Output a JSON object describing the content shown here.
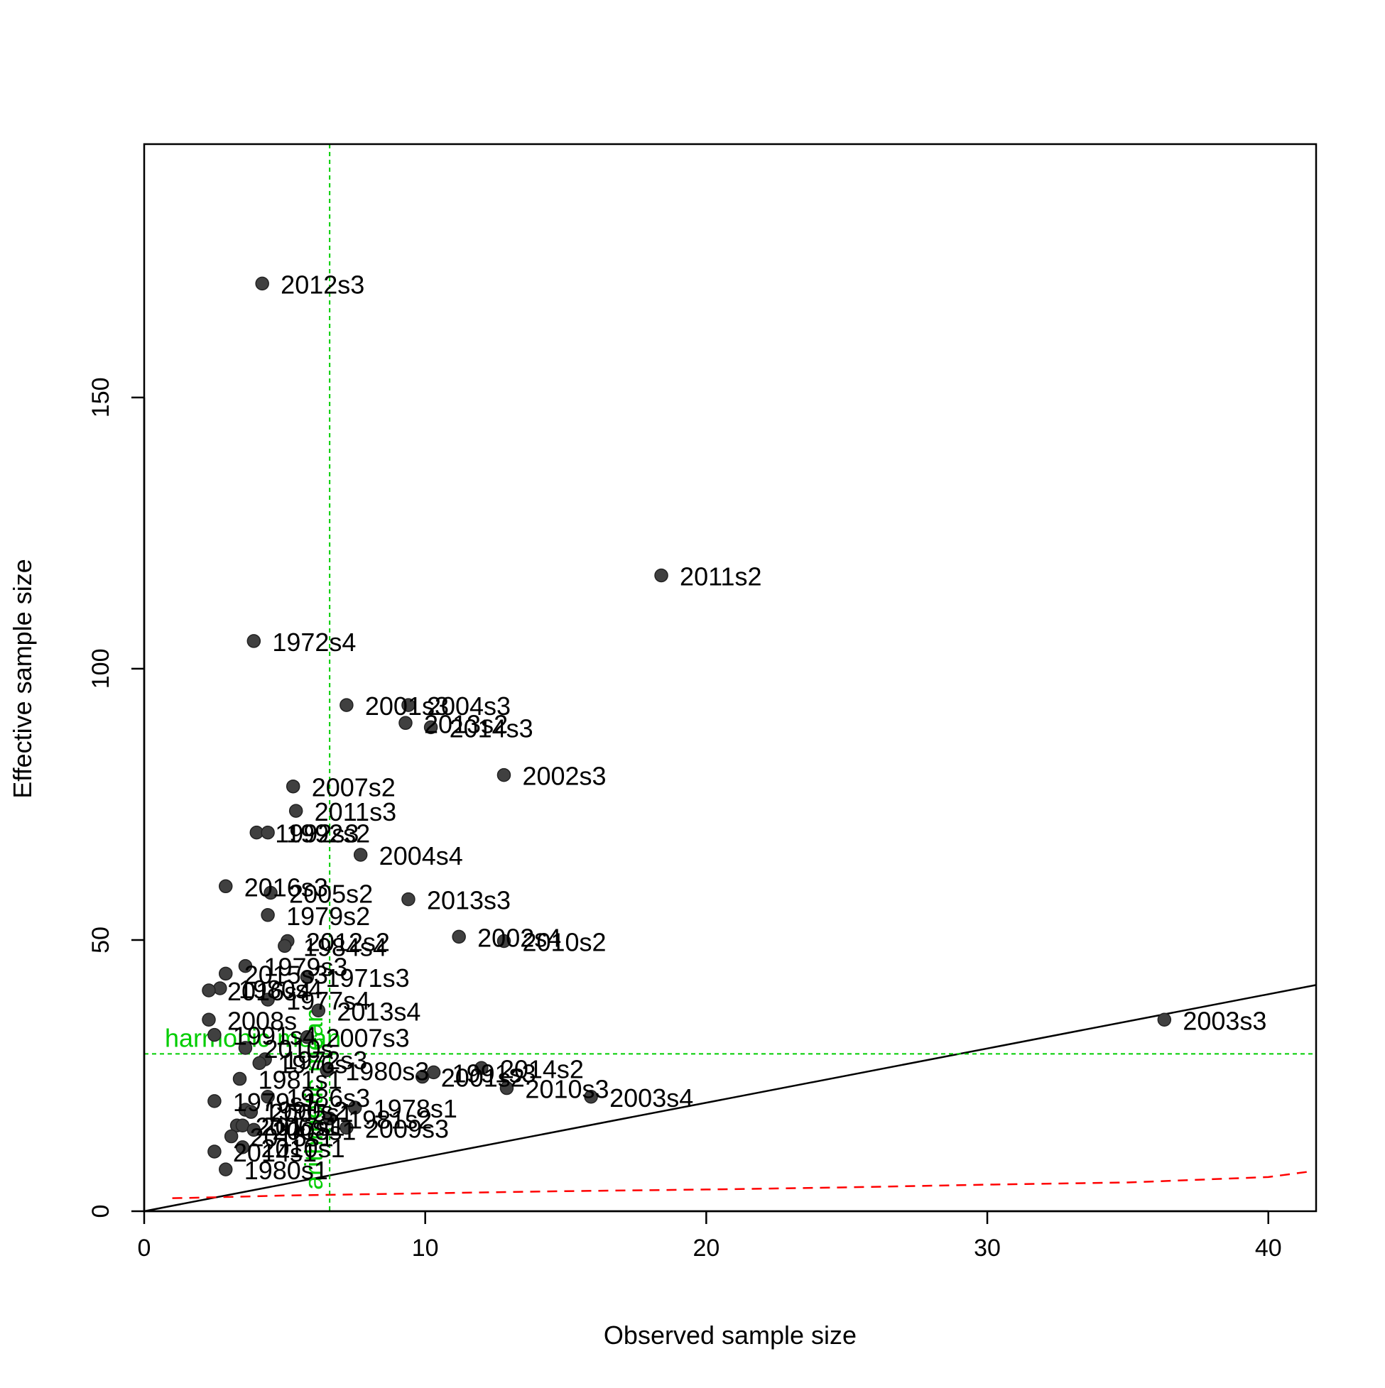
{
  "chart_data": {
    "type": "scatter",
    "xlabel": "Observed sample size",
    "ylabel": "Effective sample size",
    "xlim": [
      0,
      41.7
    ],
    "ylim": [
      0,
      196.7
    ],
    "x_ticks": [
      0,
      10,
      20,
      30,
      40
    ],
    "y_ticks": [
      0,
      50,
      100,
      150
    ],
    "grid": false,
    "colors": {
      "points": "#404040",
      "one_to_one_line": "#000000",
      "reference_lines": "#00cd00",
      "lower_curve": "#ff0000"
    },
    "points": [
      {
        "label": "2012s3",
        "x": 4.2,
        "y": 171.0
      },
      {
        "label": "2011s2",
        "x": 18.4,
        "y": 117.2
      },
      {
        "label": "1972s4",
        "x": 3.9,
        "y": 105.1
      },
      {
        "label": "2001s3",
        "x": 7.2,
        "y": 93.3
      },
      {
        "label": "2004s3",
        "x": 9.4,
        "y": 93.3
      },
      {
        "label": "2013s2",
        "x": 9.3,
        "y": 90.0
      },
      {
        "label": "2014s3",
        "x": 10.2,
        "y": 89.2
      },
      {
        "label": "2002s3",
        "x": 12.8,
        "y": 80.4
      },
      {
        "label": "2007s2",
        "x": 5.3,
        "y": 78.3
      },
      {
        "label": "2011s3",
        "x": 5.4,
        "y": 73.8
      },
      {
        "label": "1992s3",
        "x": 4.0,
        "y": 69.8
      },
      {
        "label": "1992s2",
        "x": 4.4,
        "y": 69.8
      },
      {
        "label": "2004s4",
        "x": 7.7,
        "y": 65.7
      },
      {
        "label": "2016s3",
        "x": 2.9,
        "y": 59.9
      },
      {
        "label": "2005s2",
        "x": 4.5,
        "y": 58.7
      },
      {
        "label": "2013s3",
        "x": 9.4,
        "y": 57.5
      },
      {
        "label": "1979s2",
        "x": 4.4,
        "y": 54.6
      },
      {
        "label": "2002s4",
        "x": 11.2,
        "y": 50.6
      },
      {
        "label": "2010s2",
        "x": 12.8,
        "y": 49.8
      },
      {
        "label": "2012s2",
        "x": 5.1,
        "y": 49.8
      },
      {
        "label": "1984s4",
        "x": 5.0,
        "y": 48.9
      },
      {
        "label": "1979s3",
        "x": 3.6,
        "y": 45.2
      },
      {
        "label": "2015s3",
        "x": 2.9,
        "y": 43.8
      },
      {
        "label": "1971s3",
        "x": 5.8,
        "y": 43.2
      },
      {
        "label": "1980s4",
        "x": 2.7,
        "y": 41.1
      },
      {
        "label": "2016s4",
        "x": 2.3,
        "y": 40.7
      },
      {
        "label": "1977s4",
        "x": 4.4,
        "y": 39.0
      },
      {
        "label": "2013s4",
        "x": 6.2,
        "y": 37.0
      },
      {
        "label": "2008s",
        "x": 2.3,
        "y": 35.3
      },
      {
        "label": "2003s3",
        "x": 36.3,
        "y": 35.3
      },
      {
        "label": "1991s4",
        "x": 2.5,
        "y": 32.5
      },
      {
        "label": "2007s3",
        "x": 5.8,
        "y": 32.1
      },
      {
        "label": "2010s",
        "x": 3.6,
        "y": 30.1
      },
      {
        "label": "1972s3",
        "x": 4.3,
        "y": 28.0
      },
      {
        "label": "1976s",
        "x": 4.1,
        "y": 27.3
      },
      {
        "label": "2014s2",
        "x": 12.0,
        "y": 26.4
      },
      {
        "label": "1980s3",
        "x": 6.5,
        "y": 26.0
      },
      {
        "label": "1991s3",
        "x": 10.3,
        "y": 25.6
      },
      {
        "label": "2001s2",
        "x": 9.9,
        "y": 24.8
      },
      {
        "label": "1981s1",
        "x": 3.4,
        "y": 24.4
      },
      {
        "label": "2010s3",
        "x": 12.9,
        "y": 22.7
      },
      {
        "label": "2003s4",
        "x": 15.9,
        "y": 21.1
      },
      {
        "label": "1986s3",
        "x": 4.4,
        "y": 21.1
      },
      {
        "label": "1979s1",
        "x": 2.5,
        "y": 20.3
      },
      {
        "label": "1978s1",
        "x": 7.5,
        "y": 19.1
      },
      {
        "label": "1990s2",
        "x": 3.6,
        "y": 18.7
      },
      {
        "label": "2005s1",
        "x": 3.8,
        "y": 18.3
      },
      {
        "label": "1981s2",
        "x": 6.6,
        "y": 17.1
      },
      {
        "label": "2006s1",
        "x": 3.3,
        "y": 15.8
      },
      {
        "label": "2017s1",
        "x": 3.5,
        "y": 15.8
      },
      {
        "label": "2009s3",
        "x": 7.2,
        "y": 15.4
      },
      {
        "label": "2008s1",
        "x": 3.9,
        "y": 15.0
      },
      {
        "label": "2015s1",
        "x": 3.1,
        "y": 13.8
      },
      {
        "label": "2010s1",
        "x": 3.5,
        "y": 11.8
      },
      {
        "label": "2014s1",
        "x": 2.5,
        "y": 11.0
      },
      {
        "label": "1980s1",
        "x": 2.9,
        "y": 7.7
      }
    ],
    "harmonic_mean_label": "harmonic mean",
    "harmonic_mean_y": 29.0,
    "arithmetic_mean_label": "arithmetic mean",
    "arithmetic_mean_x": 6.6,
    "one_to_one_line": {
      "x": [
        0,
        41.7
      ],
      "y": [
        0,
        41.7
      ]
    },
    "lower_curve": {
      "x": [
        1,
        2,
        5,
        10,
        15,
        20,
        25,
        30,
        35,
        40,
        41.6
      ],
      "y": [
        2.4,
        2.5,
        2.9,
        3.3,
        3.7,
        4.0,
        4.4,
        4.9,
        5.3,
        6.3,
        7.4
      ]
    }
  }
}
